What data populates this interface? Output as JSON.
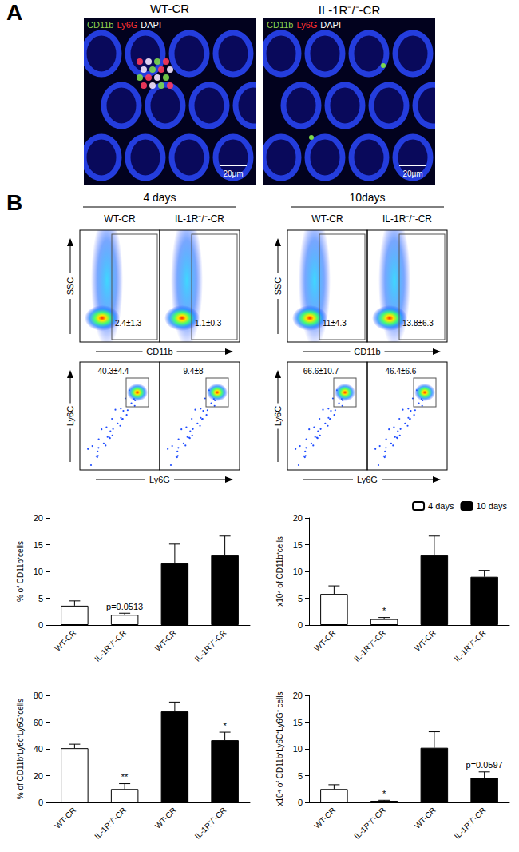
{
  "panel_a": {
    "label": "A",
    "images": [
      {
        "title": "WT-CR",
        "stain": [
          {
            "text": "CD11b",
            "color": "#8fd14f"
          },
          {
            "text": "Ly6G",
            "color": "#ff3030"
          },
          {
            "text": "DAPI",
            "color": "#ffffff"
          }
        ],
        "scale_bar": "20μm"
      },
      {
        "title": "IL-1R⁻/⁻-CR",
        "stain": [
          {
            "text": "CD11b",
            "color": "#8fd14f"
          },
          {
            "text": "Ly6G",
            "color": "#ff3030"
          },
          {
            "text": "DAPI",
            "color": "#ffffff"
          }
        ],
        "scale_bar": "20μm"
      }
    ]
  },
  "panel_b": {
    "label": "B",
    "groups": [
      {
        "title": "4 days",
        "columns": [
          "WT-CR",
          "IL-1R⁻/⁻-CR"
        ]
      },
      {
        "title": "10days",
        "columns": [
          "WT-CR",
          "IL-1R⁻/⁻-CR"
        ]
      }
    ],
    "rows": [
      {
        "y_label": "SSC",
        "x_label": "CD11b",
        "values": [
          "2.4±1.3",
          "1.1±0.3",
          "11±4.3",
          "13.8±6.3"
        ]
      },
      {
        "y_label": "Ly6C",
        "x_label": "Ly6G",
        "values": [
          "40.3±4.4",
          "9.4±8",
          "66.6±10.7",
          "46.4±6.6"
        ]
      }
    ]
  },
  "chart_data": [
    {
      "type": "bar",
      "y_label": "% of CD11b⁺cells",
      "categories": [
        "WT-CR",
        "IL-1R⁻/⁻-CR",
        "WT-CR",
        "IL-1R⁻/⁻-CR"
      ],
      "series": [
        {
          "name": "4 days",
          "color": "#ffffff",
          "values": [
            3.6,
            1.9,
            null,
            null
          ],
          "errors": [
            0.9,
            0.3,
            null,
            null
          ]
        },
        {
          "name": "10 days",
          "color": "#000000",
          "values": [
            null,
            null,
            11.5,
            13
          ],
          "errors": [
            null,
            null,
            3.6,
            3.6
          ]
        }
      ],
      "annotations": [
        null,
        "p=0.0513",
        null,
        null
      ],
      "ylim": [
        0,
        20
      ],
      "yticks": [
        0,
        5,
        10,
        15,
        20
      ],
      "grid": false
    },
    {
      "type": "bar",
      "y_label": "x10⁴ of CD11b⁺cells",
      "categories": [
        "WT-CR",
        "IL-1R⁻/⁻-CR",
        "WT-CR",
        "IL-1R⁻/⁻-CR"
      ],
      "series": [
        {
          "name": "4 days",
          "color": "#ffffff",
          "values": [
            5.8,
            1.1,
            null,
            null
          ],
          "errors": [
            1.5,
            0.3,
            null,
            null
          ]
        },
        {
          "name": "10 days",
          "color": "#000000",
          "values": [
            null,
            null,
            13,
            9
          ],
          "errors": [
            null,
            null,
            3.6,
            1.2
          ]
        }
      ],
      "annotations": [
        null,
        "*",
        null,
        null
      ],
      "ylim": [
        0,
        20
      ],
      "yticks": [
        0,
        5,
        10,
        15,
        20
      ],
      "grid": false,
      "legend": "top-right"
    },
    {
      "type": "bar",
      "y_label": "% of CD11b⁺Ly6c⁺Ly6G⁺cells",
      "categories": [
        "WT-CR",
        "IL-1R⁻/⁻-CR",
        "WT-CR",
        "IL-1R⁻/⁻-CR"
      ],
      "series": [
        {
          "name": "4 days",
          "color": "#ffffff",
          "values": [
            40.5,
            10,
            null,
            null
          ],
          "errors": [
            3,
            4,
            null,
            null
          ]
        },
        {
          "name": "10 days",
          "color": "#000000",
          "values": [
            null,
            null,
            68,
            46.5
          ],
          "errors": [
            null,
            null,
            7,
            6
          ]
        }
      ],
      "annotations": [
        null,
        "**",
        null,
        "*"
      ],
      "ylim": [
        0,
        80
      ],
      "yticks": [
        0,
        20,
        40,
        60,
        80
      ],
      "grid": false
    },
    {
      "type": "bar",
      "y_label": "x10⁴ of CD11b⁺Ly6C⁺Ly6G⁺ cells",
      "categories": [
        "WT-CR",
        "IL-1R⁻/⁻-CR",
        "WT-CR",
        "IL-1R⁻/⁻-CR"
      ],
      "series": [
        {
          "name": "4 days",
          "color": "#ffffff",
          "values": [
            2.5,
            0.3,
            null,
            null
          ],
          "errors": [
            0.8,
            0.1,
            null,
            null
          ]
        },
        {
          "name": "10 days",
          "color": "#000000",
          "values": [
            null,
            null,
            10.2,
            4.6
          ],
          "errors": [
            null,
            null,
            3,
            1.1
          ]
        }
      ],
      "annotations": [
        null,
        "*",
        null,
        "p=0.0597"
      ],
      "ylim": [
        0,
        20
      ],
      "yticks": [
        0,
        5,
        10,
        15,
        20
      ],
      "grid": false
    }
  ]
}
